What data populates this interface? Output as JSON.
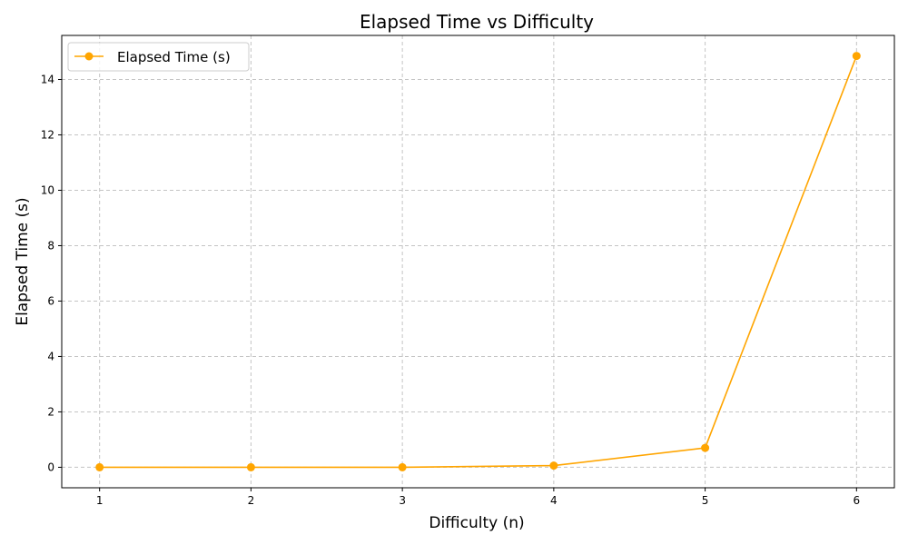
{
  "chart_data": {
    "type": "line",
    "title": "Elapsed Time vs Difficulty",
    "xlabel": "Difficulty (n)",
    "ylabel": "Elapsed Time (s)",
    "x": [
      1,
      2,
      3,
      4,
      5,
      6
    ],
    "series": [
      {
        "name": "Elapsed Time (s)",
        "color": "#ffa500",
        "marker": "circle",
        "values": [
          0.0,
          0.0,
          0.0,
          0.06,
          0.7,
          14.85
        ]
      }
    ],
    "xticks": [
      1,
      2,
      3,
      4,
      5,
      6
    ],
    "yticks": [
      0,
      2,
      4,
      6,
      8,
      10,
      12,
      14
    ],
    "xlim": [
      0.75,
      6.25
    ],
    "ylim": [
      -0.74,
      15.59
    ],
    "grid": true,
    "grid_style": "dashed",
    "legend_position": "upper-left"
  }
}
